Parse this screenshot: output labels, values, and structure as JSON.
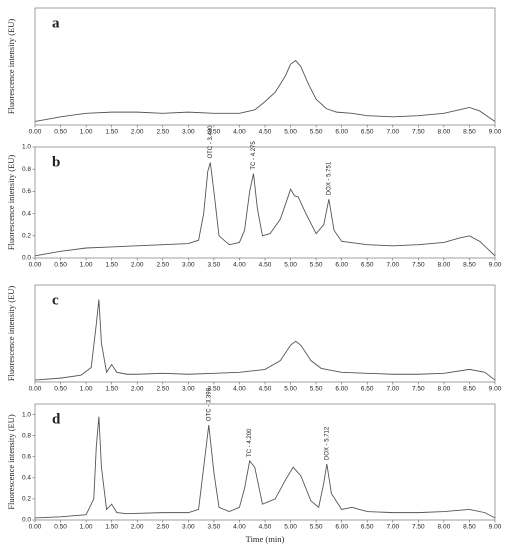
{
  "chart_data": [
    {
      "type": "line",
      "panel_label": "a",
      "ylabel": "Fluorescence intensity (EU)",
      "color": "#555555",
      "xlim": [
        0,
        9
      ],
      "ylim": [
        0,
        1.0
      ],
      "xticks": [
        {
          "value": 0,
          "label": "0.00"
        },
        {
          "value": 0.5,
          "label": "0.50"
        },
        {
          "value": 1,
          "label": "1.00"
        },
        {
          "value": 1.5,
          "label": "1.50"
        },
        {
          "value": 2,
          "label": "2.00"
        },
        {
          "value": 2.5,
          "label": "2.50"
        },
        {
          "value": 3,
          "label": "3.00"
        },
        {
          "value": 3.5,
          "label": "3.50"
        },
        {
          "value": 4,
          "label": "4.00"
        },
        {
          "value": 4.5,
          "label": "4.50"
        },
        {
          "value": 5,
          "label": "5.00"
        },
        {
          "value": 5.5,
          "label": "5.50"
        },
        {
          "value": 6,
          "label": "6.00"
        },
        {
          "value": 6.5,
          "label": "6.50"
        },
        {
          "value": 7,
          "label": "7.00"
        },
        {
          "value": 7.5,
          "label": "7.50"
        },
        {
          "value": 8,
          "label": "8.00"
        },
        {
          "value": 8.5,
          "label": "8.50"
        },
        {
          "value": 9,
          "label": "9.00"
        }
      ],
      "x": [
        0,
        0.25,
        0.5,
        1,
        1.5,
        2,
        2.5,
        3,
        3.5,
        4,
        4.3,
        4.5,
        4.7,
        4.9,
        5.0,
        5.1,
        5.2,
        5.35,
        5.5,
        5.7,
        5.9,
        6.2,
        6.5,
        7,
        7.5,
        8,
        8.3,
        8.5,
        8.7,
        9
      ],
      "values": [
        0.03,
        0.05,
        0.07,
        0.1,
        0.11,
        0.11,
        0.1,
        0.11,
        0.1,
        0.1,
        0.13,
        0.2,
        0.28,
        0.42,
        0.52,
        0.55,
        0.5,
        0.35,
        0.22,
        0.14,
        0.11,
        0.1,
        0.08,
        0.07,
        0.08,
        0.1,
        0.13,
        0.15,
        0.12,
        0.03
      ]
    },
    {
      "type": "line",
      "panel_label": "b",
      "ylabel": "Fluorescence intensity (EU)",
      "color": "#555555",
      "xlim": [
        0,
        9
      ],
      "ylim": [
        0,
        1.0
      ],
      "yticks": [
        {
          "value": 0,
          "label": "0.0"
        },
        {
          "value": 0.2,
          "label": "0.2"
        },
        {
          "value": 0.4,
          "label": "0.4"
        },
        {
          "value": 0.6,
          "label": "0.6"
        },
        {
          "value": 0.8,
          "label": "0.8"
        },
        {
          "value": 1,
          "label": "1.0"
        }
      ],
      "xticks": [
        {
          "value": 0,
          "label": "0.00"
        },
        {
          "value": 0.5,
          "label": "0.50"
        },
        {
          "value": 1,
          "label": "1.00"
        },
        {
          "value": 1.5,
          "label": "1.50"
        },
        {
          "value": 2,
          "label": "2.00"
        },
        {
          "value": 2.5,
          "label": "2.50"
        },
        {
          "value": 3,
          "label": "3.00"
        },
        {
          "value": 3.5,
          "label": "3.50"
        },
        {
          "value": 4,
          "label": "4.00"
        },
        {
          "value": 4.5,
          "label": "4.50"
        },
        {
          "value": 5,
          "label": "5.00"
        },
        {
          "value": 5.5,
          "label": "5.50"
        },
        {
          "value": 6,
          "label": "6.00"
        },
        {
          "value": 6.5,
          "label": "6.50"
        },
        {
          "value": 7,
          "label": "7.00"
        },
        {
          "value": 7.5,
          "label": "7.50"
        },
        {
          "value": 8,
          "label": "8.00"
        },
        {
          "value": 8.5,
          "label": "8.50"
        },
        {
          "value": 9,
          "label": "9.00"
        }
      ],
      "x": [
        0,
        0.5,
        1,
        1.5,
        2,
        2.5,
        3,
        3.2,
        3.3,
        3.38,
        3.43,
        3.5,
        3.6,
        3.8,
        4.0,
        4.1,
        4.2,
        4.275,
        4.35,
        4.45,
        4.6,
        4.8,
        4.95,
        5.0,
        5.08,
        5.15,
        5.3,
        5.5,
        5.65,
        5.75,
        5.85,
        6.0,
        6.5,
        7,
        7.5,
        8,
        8.3,
        8.5,
        8.7,
        9
      ],
      "values": [
        0.02,
        0.06,
        0.09,
        0.1,
        0.11,
        0.12,
        0.13,
        0.16,
        0.4,
        0.78,
        0.86,
        0.6,
        0.2,
        0.12,
        0.14,
        0.25,
        0.6,
        0.76,
        0.45,
        0.2,
        0.22,
        0.35,
        0.55,
        0.62,
        0.56,
        0.55,
        0.4,
        0.22,
        0.3,
        0.53,
        0.25,
        0.15,
        0.12,
        0.11,
        0.12,
        0.14,
        0.18,
        0.2,
        0.15,
        0.02
      ],
      "annotations": [
        {
          "label": "OTC - 3.430",
          "x": 3.43,
          "y": 0.86
        },
        {
          "label": "TC - 4.275",
          "x": 4.275,
          "y": 0.76
        },
        {
          "label": "DOX - 5.751",
          "x": 5.751,
          "y": 0.53
        }
      ]
    },
    {
      "type": "line",
      "panel_label": "c",
      "ylabel": "Fluorescence intensity (EU)",
      "color": "#555555",
      "xlim": [
        0,
        9
      ],
      "ylim": [
        0,
        1.0
      ],
      "xticks": [
        {
          "value": 0,
          "label": "0.00"
        },
        {
          "value": 0.5,
          "label": "0.50"
        },
        {
          "value": 1,
          "label": "1.00"
        },
        {
          "value": 1.5,
          "label": "1.50"
        },
        {
          "value": 2,
          "label": "2.00"
        },
        {
          "value": 2.5,
          "label": "2.50"
        },
        {
          "value": 3,
          "label": "3.00"
        },
        {
          "value": 3.5,
          "label": "3.50"
        },
        {
          "value": 4,
          "label": "4.00"
        },
        {
          "value": 4.5,
          "label": "4.50"
        },
        {
          "value": 5,
          "label": "5.00"
        },
        {
          "value": 5.5,
          "label": "5.50"
        },
        {
          "value": 6,
          "label": "6.00"
        },
        {
          "value": 6.5,
          "label": "6.50"
        },
        {
          "value": 7,
          "label": "7.00"
        },
        {
          "value": 7.5,
          "label": "7.50"
        },
        {
          "value": 8,
          "label": "8.00"
        },
        {
          "value": 8.5,
          "label": "8.50"
        },
        {
          "value": 9,
          "label": "9.00"
        }
      ],
      "x": [
        0,
        0.5,
        0.9,
        1.1,
        1.2,
        1.25,
        1.3,
        1.4,
        1.5,
        1.6,
        1.8,
        2,
        2.5,
        3,
        3.5,
        4,
        4.5,
        4.8,
        5.0,
        5.1,
        5.2,
        5.4,
        5.6,
        6,
        6.5,
        7,
        7.5,
        8,
        8.5,
        8.8,
        9
      ],
      "values": [
        0.02,
        0.04,
        0.07,
        0.15,
        0.6,
        0.85,
        0.4,
        0.1,
        0.18,
        0.1,
        0.08,
        0.08,
        0.09,
        0.08,
        0.09,
        0.1,
        0.13,
        0.22,
        0.38,
        0.42,
        0.38,
        0.22,
        0.14,
        0.1,
        0.09,
        0.08,
        0.08,
        0.09,
        0.13,
        0.1,
        0.02
      ]
    },
    {
      "type": "line",
      "panel_label": "d",
      "ylabel": "Fluorescence intensity (EU)",
      "xlabel": "Time (min)",
      "color": "#555555",
      "xlim": [
        0,
        9
      ],
      "ylim": [
        0,
        1.1
      ],
      "yticks": [
        {
          "value": 0,
          "label": "0.0"
        },
        {
          "value": 0.2,
          "label": "0.2"
        },
        {
          "value": 0.4,
          "label": "0.4"
        },
        {
          "value": 0.6,
          "label": "0.6"
        },
        {
          "value": 0.8,
          "label": "0.8"
        },
        {
          "value": 1,
          "label": "1.0"
        }
      ],
      "xticks": [
        {
          "value": 0,
          "label": "0.00"
        },
        {
          "value": 0.5,
          "label": "0.50"
        },
        {
          "value": 1,
          "label": "1.00"
        },
        {
          "value": 1.5,
          "label": "1.50"
        },
        {
          "value": 2,
          "label": "2.00"
        },
        {
          "value": 2.5,
          "label": "2.50"
        },
        {
          "value": 3,
          "label": "3.00"
        },
        {
          "value": 3.5,
          "label": "3.50"
        },
        {
          "value": 4,
          "label": "4.00"
        },
        {
          "value": 4.5,
          "label": "4.50"
        },
        {
          "value": 5,
          "label": "5.00"
        },
        {
          "value": 5.5,
          "label": "5.50"
        },
        {
          "value": 6,
          "label": "6.00"
        },
        {
          "value": 6.5,
          "label": "6.50"
        },
        {
          "value": 7,
          "label": "7.00"
        },
        {
          "value": 7.5,
          "label": "7.50"
        },
        {
          "value": 8,
          "label": "8.00"
        },
        {
          "value": 8.5,
          "label": "8.50"
        },
        {
          "value": 9,
          "label": "9.00"
        }
      ],
      "x": [
        0,
        0.5,
        1,
        1.15,
        1.2,
        1.25,
        1.3,
        1.4,
        1.5,
        1.6,
        1.8,
        2.5,
        3.0,
        3.2,
        3.3,
        3.4,
        3.5,
        3.6,
        3.8,
        4.0,
        4.1,
        4.2,
        4.3,
        4.45,
        4.7,
        4.9,
        5.05,
        5.2,
        5.4,
        5.55,
        5.65,
        5.71,
        5.8,
        6.0,
        6.2,
        6.5,
        7,
        7.5,
        8,
        8.5,
        8.8,
        9
      ],
      "values": [
        0.02,
        0.03,
        0.05,
        0.2,
        0.7,
        0.98,
        0.5,
        0.1,
        0.15,
        0.07,
        0.06,
        0.07,
        0.07,
        0.1,
        0.5,
        0.9,
        0.45,
        0.12,
        0.08,
        0.12,
        0.3,
        0.56,
        0.5,
        0.15,
        0.2,
        0.38,
        0.5,
        0.42,
        0.18,
        0.12,
        0.35,
        0.53,
        0.25,
        0.1,
        0.12,
        0.08,
        0.07,
        0.07,
        0.08,
        0.1,
        0.07,
        0.02
      ],
      "annotations": [
        {
          "label": "OTC - 3.399",
          "x": 3.399,
          "y": 0.9
        },
        {
          "label": "TC - 4.200",
          "x": 4.2,
          "y": 0.56
        },
        {
          "label": "DOX - 5.712",
          "x": 5.712,
          "y": 0.53
        }
      ]
    }
  ]
}
